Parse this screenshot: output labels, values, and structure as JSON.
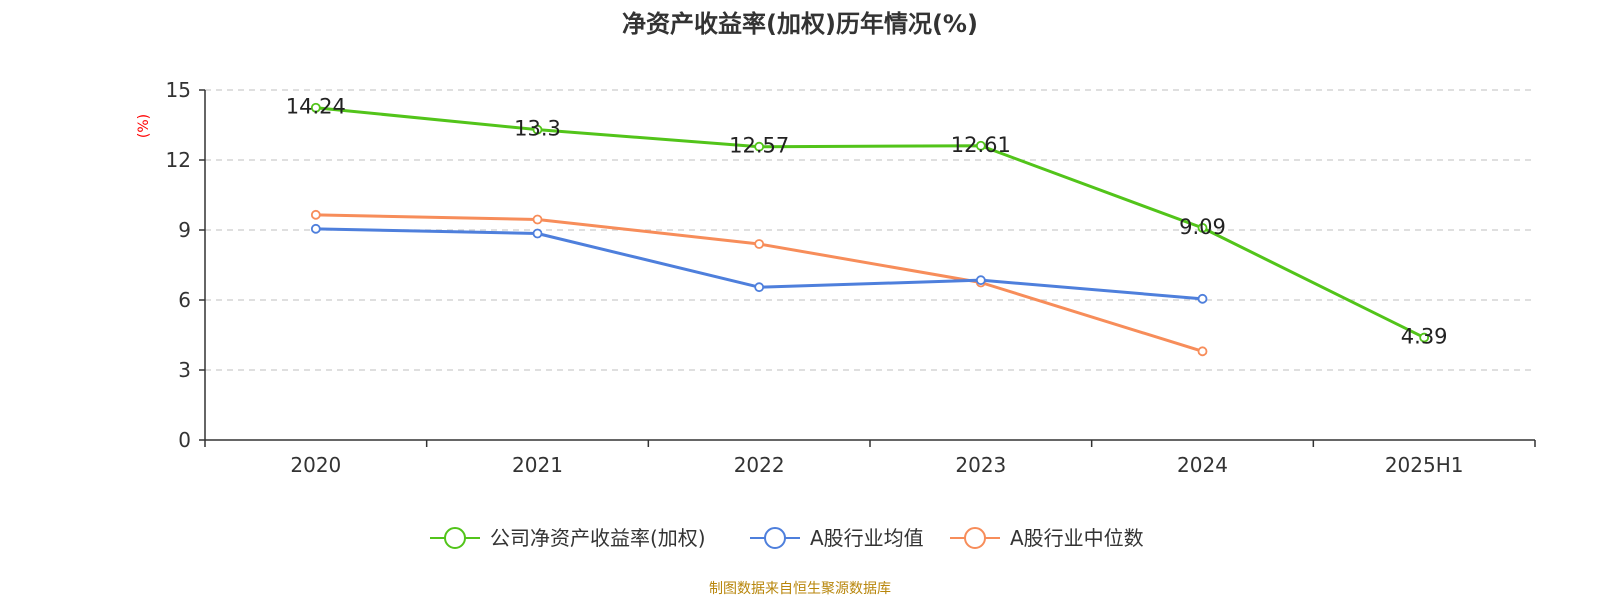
{
  "chart_data": {
    "type": "line",
    "title": "净资产收益率(加权)历年情况(%)",
    "ylabel": "(%)",
    "xlabel": "",
    "categories": [
      "2020",
      "2021",
      "2022",
      "2023",
      "2024",
      "2025H1"
    ],
    "ylim": [
      0,
      15
    ],
    "yticks": [
      0,
      3,
      6,
      9,
      12,
      15
    ],
    "grid": true,
    "legend_position": "bottom-center",
    "series": [
      {
        "name": "公司净资产收益率(加权)",
        "color": "#52c41a",
        "values": [
          14.24,
          13.3,
          12.57,
          12.61,
          9.09,
          4.39
        ],
        "labels": [
          "14.24",
          "13.3",
          "12.57",
          "12.61",
          "9.09",
          "4.39"
        ]
      },
      {
        "name": "A股行业均值",
        "color": "#4e7fdc",
        "values": [
          9.05,
          8.85,
          6.55,
          6.85,
          6.05,
          null
        ],
        "labels": []
      },
      {
        "name": "A股行业中位数",
        "color": "#f78d5a",
        "values": [
          9.65,
          9.45,
          8.4,
          6.75,
          3.8,
          null
        ],
        "labels": []
      }
    ]
  },
  "footer": "制图数据来自恒生聚源数据库",
  "colors": {
    "axis": "#333333",
    "grid": "#cccccc",
    "ylabel": "#ff0000",
    "footer": "#b8860b"
  }
}
